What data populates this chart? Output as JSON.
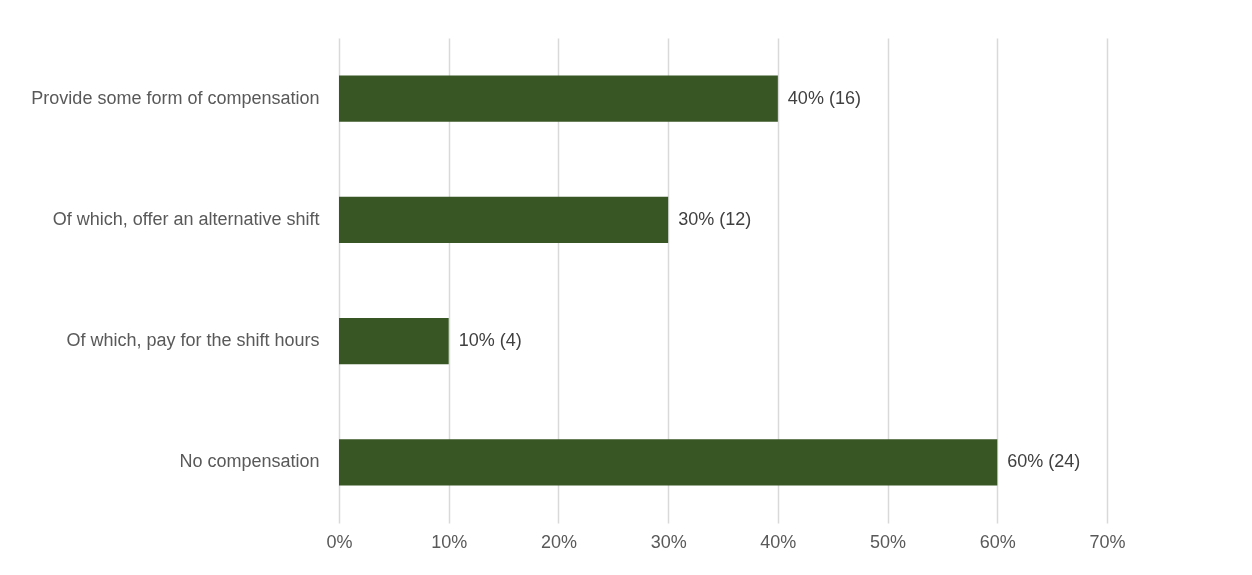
{
  "chart_data": {
    "type": "bar",
    "orientation": "horizontal",
    "categories": [
      "Provide some form of compensation",
      "Of which, offer an alternative shift",
      "Of which, pay for the shift hours",
      "No compensation"
    ],
    "values": [
      40,
      30,
      10,
      60
    ],
    "value_labels": [
      "40% (16)",
      "30% (12)",
      "10% (4)",
      "60% (24)"
    ],
    "color": "#375623",
    "xlim": [
      0,
      70
    ],
    "xticks": [
      {
        "value": 0,
        "label": "0%"
      },
      {
        "value": 10,
        "label": "10%"
      },
      {
        "value": 20,
        "label": "20%"
      },
      {
        "value": 30,
        "label": "30%"
      },
      {
        "value": 40,
        "label": "40%"
      },
      {
        "value": 50,
        "label": "50%"
      },
      {
        "value": 60,
        "label": "60%"
      },
      {
        "value": 70,
        "label": "70%"
      }
    ],
    "grid": "x"
  }
}
